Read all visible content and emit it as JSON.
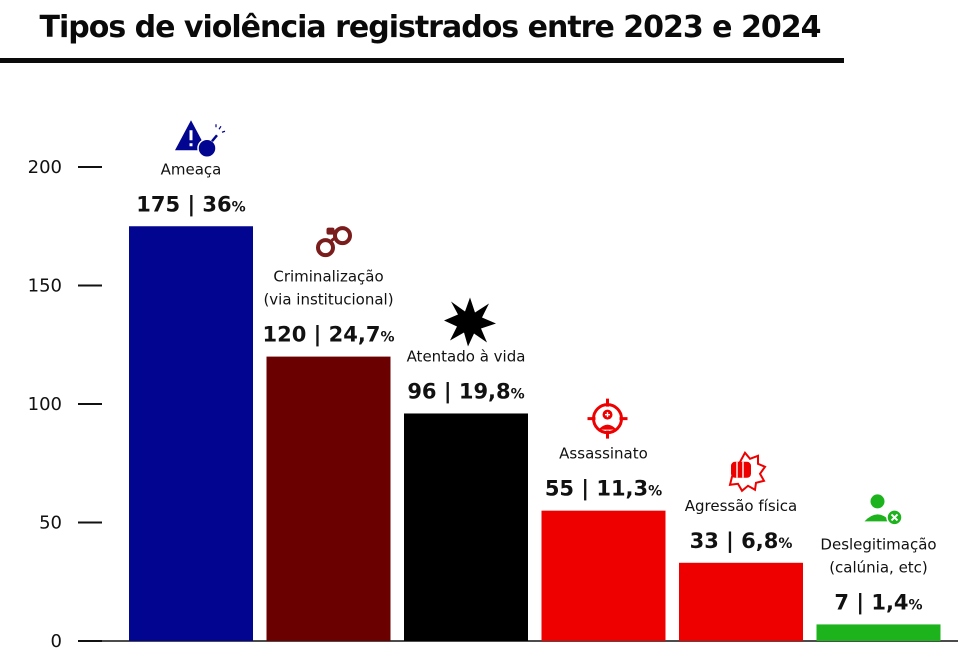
{
  "title": "Tipos de violência registrados entre 2023 e 2024",
  "chart_data": {
    "type": "bar",
    "categories": [
      [
        "Ameaça"
      ],
      [
        "Criminalização",
        "(via institucional)"
      ],
      [
        "Atentado à vida"
      ],
      [
        "Assassinato"
      ],
      [
        "Agressão física"
      ],
      [
        "Deslegitimação",
        "(calúnia, etc)"
      ]
    ],
    "values": [
      175,
      120,
      96,
      55,
      33,
      7
    ],
    "value_labels": [
      {
        "count": "175 | 36",
        "pct": "%"
      },
      {
        "count": "120 | 24,7",
        "pct": "%"
      },
      {
        "count": "96 | 19,8",
        "pct": "%"
      },
      {
        "count": "55 | 11,3",
        "pct": "%"
      },
      {
        "count": "33 | 6,8",
        "pct": "%"
      },
      {
        "count": "7 | 1,4",
        "pct": "%"
      }
    ],
    "colors": [
      "#02058f",
      "#6b0000",
      "#000000",
      "#ee0000",
      "#ee0000",
      "#1db31d"
    ],
    "icons": [
      "warning-bomb-icon",
      "handcuffs-icon",
      "explosion-icon",
      "crosshair-person-icon",
      "punch-icon",
      "person-remove-icon"
    ],
    "yticks": [
      0,
      50,
      100,
      150,
      200
    ],
    "ylim": [
      0,
      200
    ],
    "grid": false
  }
}
